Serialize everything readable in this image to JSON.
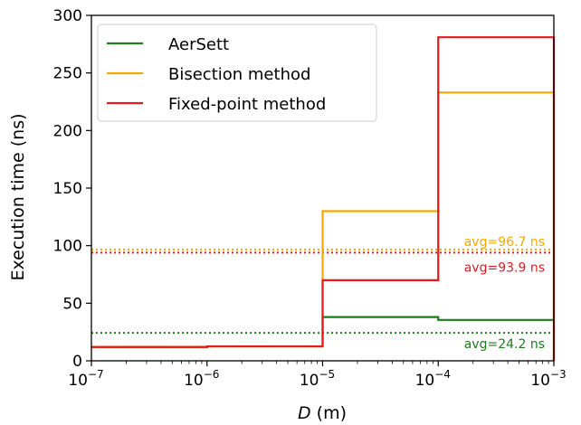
{
  "chart_data": {
    "type": "line",
    "title": "",
    "xlabel_italic": "D",
    "xlabel_unit": " (m)",
    "ylabel": "Execution time (ns)",
    "x_scale": "log",
    "xlim": [
      1e-07,
      0.001
    ],
    "ylim": [
      0,
      300
    ],
    "x_tick_exponents": [
      -7,
      -6,
      -5,
      -4,
      -3
    ],
    "x_tick_base": "10",
    "y_ticks": [
      0,
      50,
      100,
      150,
      200,
      250,
      300
    ],
    "grid": false,
    "legend_position": "top-left",
    "series": [
      {
        "name": "AerSett",
        "color": "#1a7f1a",
        "style": "step",
        "points": [
          [
            1e-07,
            12
          ],
          [
            1e-06,
            12
          ],
          [
            1e-06,
            12.5
          ],
          [
            1e-05,
            12.5
          ],
          [
            1e-05,
            38
          ],
          [
            0.0001,
            38
          ],
          [
            0.0001,
            35.5
          ],
          [
            0.001,
            35.5
          ]
        ],
        "average": 24.2,
        "average_label": "avg=24.2 ns"
      },
      {
        "name": "Bisection method",
        "color": "#f5a800",
        "style": "step",
        "points": [
          [
            1e-07,
            12
          ],
          [
            1e-06,
            12
          ],
          [
            1e-06,
            12.5
          ],
          [
            1e-05,
            12.5
          ],
          [
            1e-05,
            130
          ],
          [
            0.0001,
            130
          ],
          [
            0.0001,
            233
          ],
          [
            0.001,
            233
          ],
          [
            0.001,
            0
          ]
        ],
        "average": 96.7,
        "average_label": "avg=96.7 ns"
      },
      {
        "name": "Fixed-point method",
        "color": "#e8191c",
        "style": "step",
        "points": [
          [
            1e-07,
            12
          ],
          [
            1e-06,
            12
          ],
          [
            1e-06,
            12.5
          ],
          [
            1e-05,
            12.5
          ],
          [
            1e-05,
            70
          ],
          [
            0.0001,
            70
          ],
          [
            0.0001,
            281
          ],
          [
            0.001,
            281
          ],
          [
            0.001,
            0
          ]
        ],
        "average": 93.9,
        "average_label": "avg=93.9 ns"
      }
    ]
  }
}
